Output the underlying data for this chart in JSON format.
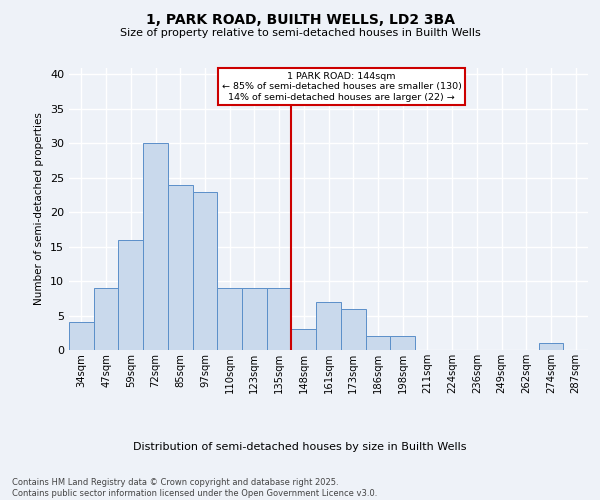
{
  "title1": "1, PARK ROAD, BUILTH WELLS, LD2 3BA",
  "title2": "Size of property relative to semi-detached houses in Builth Wells",
  "xlabel": "Distribution of semi-detached houses by size in Builth Wells",
  "ylabel": "Number of semi-detached properties",
  "categories": [
    "34sqm",
    "47sqm",
    "59sqm",
    "72sqm",
    "85sqm",
    "97sqm",
    "110sqm",
    "123sqm",
    "135sqm",
    "148sqm",
    "161sqm",
    "173sqm",
    "186sqm",
    "198sqm",
    "211sqm",
    "224sqm",
    "236sqm",
    "249sqm",
    "262sqm",
    "274sqm",
    "287sqm"
  ],
  "values": [
    4,
    9,
    16,
    30,
    24,
    23,
    9,
    9,
    9,
    3,
    7,
    6,
    2,
    2,
    0,
    0,
    0,
    0,
    0,
    1,
    0
  ],
  "bar_color": "#c9d9ec",
  "bar_edge_color": "#5b8fc9",
  "vline_color": "#cc0000",
  "annotation_line1": "1 PARK ROAD: 144sqm",
  "annotation_line2": "← 85% of semi-detached houses are smaller (130)",
  "annotation_line3": "14% of semi-detached houses are larger (22) →",
  "annotation_box_color": "#cc0000",
  "ylim": [
    0,
    41
  ],
  "yticks": [
    0,
    5,
    10,
    15,
    20,
    25,
    30,
    35,
    40
  ],
  "footer": "Contains HM Land Registry data © Crown copyright and database right 2025.\nContains public sector information licensed under the Open Government Licence v3.0.",
  "bg_color": "#eef2f8",
  "plot_bg_color": "#eef2f8",
  "grid_color": "#ffffff",
  "vline_index": 9
}
